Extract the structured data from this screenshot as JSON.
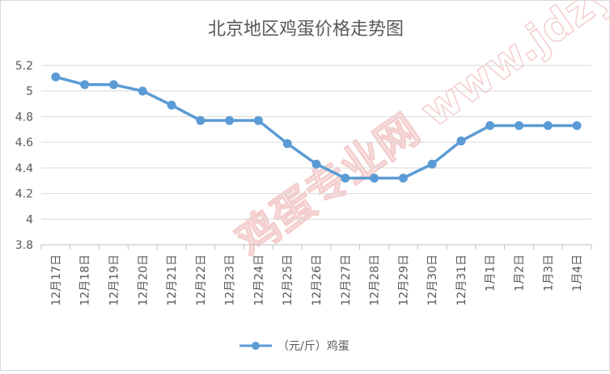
{
  "chart_data": {
    "type": "line",
    "title": "北京地区鸡蛋价格走势图",
    "categories": [
      "12月17日",
      "12月18日",
      "12月19日",
      "12月20日",
      "12月21日",
      "12月22日",
      "12月23日",
      "12月24日",
      "12月25日",
      "12月26日",
      "12月27日",
      "12月28日",
      "12月29日",
      "12月30日",
      "12月31日",
      "1月1日",
      "1月2日",
      "1月3日",
      "1月4日"
    ],
    "series": [
      {
        "name": "（元/斤）鸡蛋",
        "values": [
          5.11,
          5.05,
          5.05,
          5.0,
          4.89,
          4.77,
          4.77,
          4.77,
          4.59,
          4.43,
          4.32,
          4.32,
          4.32,
          4.43,
          4.61,
          4.73,
          4.73,
          4.73,
          4.73
        ],
        "color": "#5b9bd5"
      }
    ],
    "yticks": [
      "3.8",
      "4",
      "4.2",
      "4.4",
      "4.6",
      "4.8",
      "5",
      "5.2"
    ],
    "ylim": [
      3.8,
      5.2
    ],
    "grid": true,
    "legend_position": "bottom"
  },
  "watermark": "鸡蛋专业网 www.jdzyw.com"
}
